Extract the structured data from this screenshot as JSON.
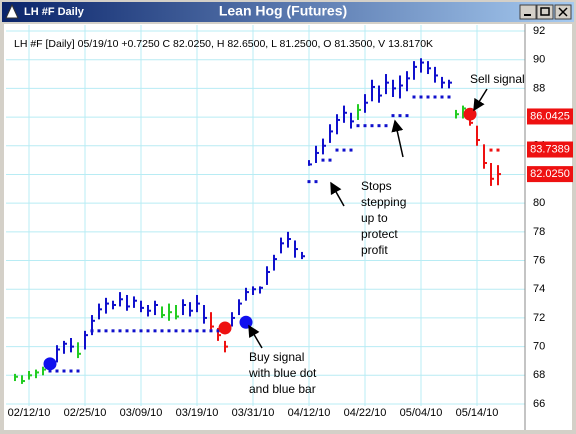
{
  "window": {
    "title": "LH #F Daily"
  },
  "chart_data": {
    "type": "ohlc",
    "title": "Lean Hog (Futures)",
    "subtitle": "LH #F [Daily] 05/19/10 +0.7250 C 82.0250, H 82.6500, L 81.2500, O 81.3500, V 13.8170K",
    "categories": [
      null,
      null,
      "02/12/10",
      null,
      null,
      null,
      null,
      null,
      null,
      null,
      "02/25/10",
      null,
      null,
      null,
      null,
      null,
      null,
      null,
      "03/09/10",
      null,
      null,
      null,
      null,
      null,
      null,
      null,
      "03/19/10",
      null,
      null,
      null,
      null,
      null,
      null,
      null,
      "03/31/10",
      null,
      null,
      null,
      null,
      null,
      null,
      null,
      "04/12/10",
      null,
      null,
      null,
      null,
      null,
      null,
      null,
      "04/22/10",
      null,
      null,
      null,
      null,
      null,
      null,
      null,
      "05/04/10",
      null,
      null,
      null,
      null,
      null,
      null,
      null,
      "05/14/10",
      null,
      null,
      null
    ],
    "high": [
      68.1,
      68.0,
      68.3,
      68.4,
      68.6,
      69.0,
      70.1,
      70.4,
      70.6,
      70.3,
      71.1,
      72.2,
      73.0,
      73.4,
      73.2,
      73.8,
      73.6,
      73.5,
      73.2,
      72.9,
      73.2,
      72.8,
      73.0,
      72.9,
      73.3,
      73.1,
      73.6,
      72.9,
      72.4,
      71.3,
      70.4,
      72.4,
      73.3,
      74.1,
      74.2,
      74.2,
      75.6,
      76.4,
      77.6,
      78.0,
      77.4,
      76.6,
      83.0,
      84.0,
      84.5,
      85.5,
      86.2,
      86.8,
      86.3,
      86.9,
      87.6,
      88.6,
      88.2,
      89.0,
      88.6,
      88.9,
      89.2,
      89.9,
      90.1,
      89.9,
      89.5,
      88.8,
      88.6,
      86.5,
      86.8,
      86.4,
      85.4,
      84.1,
      82.8,
      82.65
    ],
    "low": [
      67.6,
      67.4,
      67.7,
      67.8,
      68.0,
      68.2,
      68.9,
      69.5,
      69.6,
      69.2,
      69.8,
      70.8,
      71.9,
      72.3,
      72.6,
      72.8,
      72.5,
      72.7,
      72.4,
      72.1,
      72.2,
      72.0,
      71.8,
      71.9,
      72.2,
      72.1,
      72.4,
      71.6,
      71.2,
      70.4,
      69.6,
      71.4,
      72.2,
      73.2,
      73.6,
      73.7,
      74.3,
      75.3,
      76.5,
      76.9,
      76.2,
      76.1,
      82.6,
      82.8,
      83.4,
      84.2,
      84.8,
      85.6,
      85.2,
      85.8,
      86.3,
      87.1,
      87.0,
      87.6,
      87.4,
      87.3,
      87.8,
      88.6,
      89.1,
      89.0,
      88.4,
      88.0,
      88.0,
      85.9,
      85.9,
      85.4,
      84.0,
      82.4,
      81.2,
      81.25
    ],
    "close": [
      67.9,
      67.6,
      68.0,
      68.2,
      68.4,
      68.8,
      69.8,
      70.2,
      70.0,
      69.5,
      70.8,
      71.8,
      72.6,
      73.0,
      72.9,
      73.3,
      72.8,
      73.2,
      72.7,
      72.5,
      72.9,
      72.2,
      72.4,
      72.1,
      72.9,
      72.5,
      73.0,
      72.0,
      71.4,
      70.8,
      70.0,
      72.0,
      73.0,
      73.8,
      74.0,
      74.1,
      75.2,
      76.1,
      77.2,
      77.5,
      76.8,
      76.3,
      82.7,
      83.5,
      84.0,
      85.0,
      85.8,
      86.3,
      85.7,
      86.5,
      87.0,
      88.1,
      87.5,
      88.4,
      88.0,
      88.2,
      88.7,
      89.5,
      89.8,
      89.4,
      88.9,
      88.4,
      88.4,
      86.2,
      86.6,
      85.6,
      84.4,
      82.8,
      81.7,
      82.025
    ],
    "bar_colors": [
      "#22cc22",
      "#22cc22",
      "#22cc22",
      "#22cc22",
      "#22cc22",
      "#1010cc",
      "#1010cc",
      "#1010cc",
      "#1010cc",
      "#22cc22",
      "#1010cc",
      "#1010cc",
      "#1010cc",
      "#1010cc",
      "#1010cc",
      "#1010cc",
      "#1010cc",
      "#1010cc",
      "#1010cc",
      "#1010cc",
      "#1010cc",
      "#22cc22",
      "#22cc22",
      "#22cc22",
      "#1010cc",
      "#1010cc",
      "#1010cc",
      "#1010cc",
      "#ee1111",
      "#ee1111",
      "#ee1111",
      "#1010cc",
      "#1010cc",
      "#1010cc",
      "#1010cc",
      "#1010cc",
      "#1010cc",
      "#1010cc",
      "#1010cc",
      "#1010cc",
      "#1010cc",
      "#1010cc",
      "#1010cc",
      "#1010cc",
      "#1010cc",
      "#1010cc",
      "#1010cc",
      "#1010cc",
      "#1010cc",
      "#22cc22",
      "#1010cc",
      "#1010cc",
      "#1010cc",
      "#1010cc",
      "#1010cc",
      "#1010cc",
      "#1010cc",
      "#1010cc",
      "#1010cc",
      "#1010cc",
      "#1010cc",
      "#1010cc",
      "#1010cc",
      "#22cc22",
      "#22cc22",
      "#ee1111",
      "#ee1111",
      "#ee1111",
      "#ee1111",
      "#ee1111"
    ],
    "stops": [
      {
        "color": "#1010cc",
        "values": [
          null,
          null,
          null,
          null,
          null,
          68.3,
          68.3,
          68.3,
          68.3,
          68.3,
          null,
          71.1,
          71.1,
          71.1,
          71.1,
          71.1,
          71.1,
          71.1,
          71.1,
          71.1,
          71.1,
          71.1,
          71.1,
          71.1,
          71.1,
          71.1,
          71.1,
          71.1,
          71.1,
          71.1,
          71.1,
          null,
          null,
          null,
          null,
          null,
          null,
          null,
          null,
          null,
          null,
          null,
          81.5,
          81.5,
          83.0,
          83.0,
          83.7,
          83.7,
          83.7,
          85.4,
          85.4,
          85.4,
          85.4,
          85.4,
          86.1,
          86.1,
          86.1,
          87.4,
          87.4,
          87.4,
          87.4,
          87.4,
          87.4,
          null,
          null,
          null,
          null,
          null,
          null,
          null
        ]
      },
      {
        "color": "#ee1111",
        "values": [
          null,
          null,
          null,
          null,
          null,
          null,
          null,
          null,
          null,
          null,
          null,
          null,
          null,
          null,
          null,
          null,
          null,
          null,
          null,
          null,
          null,
          null,
          null,
          null,
          null,
          null,
          null,
          null,
          null,
          null,
          null,
          null,
          null,
          null,
          null,
          null,
          null,
          null,
          null,
          null,
          null,
          null,
          null,
          null,
          null,
          null,
          null,
          null,
          null,
          null,
          null,
          null,
          null,
          null,
          null,
          null,
          null,
          null,
          null,
          null,
          null,
          null,
          null,
          null,
          null,
          null,
          null,
          null,
          83.7,
          83.7
        ]
      }
    ],
    "signals": [
      {
        "index": 5,
        "value": 68.8,
        "color": "#1010ee"
      },
      {
        "index": 30,
        "value": 71.3,
        "color": "#ee1111"
      },
      {
        "index": 33,
        "value": 71.7,
        "color": "#1010ee"
      },
      {
        "index": 65,
        "value": 86.2,
        "color": "#ee1111"
      }
    ],
    "price_tags": [
      86.0425,
      83.7389,
      {
        "value": 82.025,
        "label": "82.0250"
      }
    ],
    "ylim": [
      66,
      92
    ],
    "yticks": [
      66,
      68,
      70,
      72,
      74,
      76,
      78,
      80,
      82,
      84,
      86,
      88,
      90,
      92
    ],
    "grid": true,
    "annotations": [
      [
        "Buy signal",
        "with blue dot",
        "and blue bar"
      ],
      [
        "Stops",
        "stepping",
        "up to",
        "protect",
        "profit"
      ],
      [
        "Sell signal"
      ]
    ]
  }
}
